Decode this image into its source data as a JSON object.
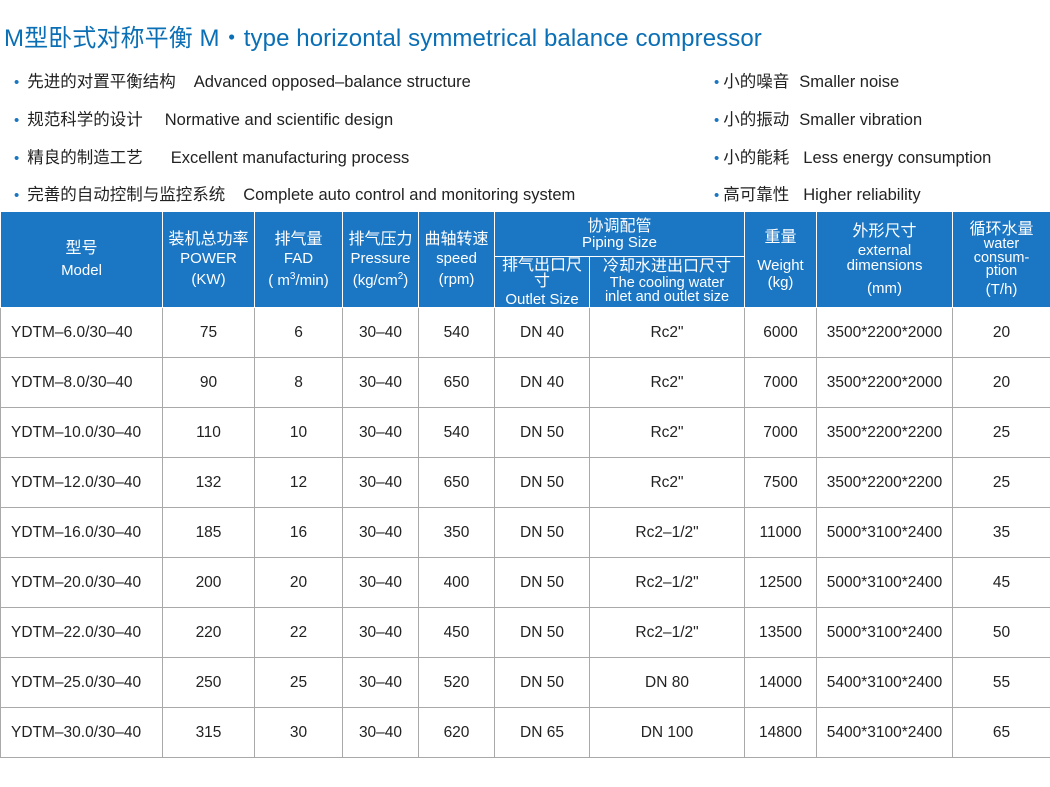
{
  "title": "M型卧式对称平衡  M・type horizontal symmetrical balance compressor",
  "features_left": [
    {
      "cn": "先进的对置平衡结构",
      "en": "Advanced opposed–balance structure"
    },
    {
      "cn": "规范科学的设计",
      "en": "Normative and scientific design"
    },
    {
      "cn": "精良的制造工艺",
      "en": "Excellent manufacturing process"
    },
    {
      "cn": "完善的自动控制与监控系统",
      "en": "Complete auto control and monitoring system"
    }
  ],
  "features_right": [
    {
      "cn": "小的噪音",
      "en": "Smaller noise"
    },
    {
      "cn": "小的振动",
      "en": "Smaller vibration"
    },
    {
      "cn": "小的能耗",
      "en": "Less energy consumption"
    },
    {
      "cn": "高可靠性",
      "en": "Higher reliability"
    }
  ],
  "bullet": "•",
  "header": {
    "model_cn": "型号",
    "model_en": "Model",
    "power_cn": "装机总功率",
    "power_en": "POWER",
    "power_unit": "(KW)",
    "fad_cn": "排气量",
    "fad_en": "FAD",
    "fad_unit_a": "( m",
    "fad_unit_sup": "3",
    "fad_unit_b": "/min)",
    "pressure_cn": "排气压力",
    "pressure_en": "Pressure",
    "pressure_unit_a": "(kg/cm",
    "pressure_unit_sup": "2",
    "pressure_unit_b": ")",
    "speed_cn": "曲轴转速",
    "speed_en": "speed",
    "speed_unit": "(rpm)",
    "piping_cn": "协调配管",
    "piping_en": "Piping Size",
    "outlet_cn": "排气出口尺寸",
    "outlet_en": "Outlet Size",
    "cooling_cn": "冷却水进出口尺寸",
    "cooling_en1": "The cooling water",
    "cooling_en2": "inlet and outlet size",
    "weight_cn": "重量",
    "weight_en": "Weight",
    "weight_unit": "(kg)",
    "dim_cn": "外形尺寸",
    "dim_en1": "external",
    "dim_en2": "dimensions",
    "dim_unit": "(mm)",
    "water_cn": "循环水量",
    "water_en1": "water",
    "water_en2": "consum-",
    "water_en3": "ption",
    "water_unit": "(T/h)"
  },
  "rows": [
    {
      "model": "YDTM–6.0/30–40",
      "power": "75",
      "fad": "6",
      "pressure": "30–40",
      "speed": "540",
      "outlet": "DN 40",
      "cooling": "Rc2\"",
      "weight": "6000",
      "dims": "3500*2200*2000",
      "water": "20"
    },
    {
      "model": "YDTM–8.0/30–40",
      "power": "90",
      "fad": "8",
      "pressure": "30–40",
      "speed": "650",
      "outlet": "DN 40",
      "cooling": "Rc2\"",
      "weight": "7000",
      "dims": "3500*2200*2000",
      "water": "20"
    },
    {
      "model": "YDTM–10.0/30–40",
      "power": "110",
      "fad": "10",
      "pressure": "30–40",
      "speed": "540",
      "outlet": "DN 50",
      "cooling": "Rc2\"",
      "weight": "7000",
      "dims": "3500*2200*2200",
      "water": "25"
    },
    {
      "model": "YDTM–12.0/30–40",
      "power": "132",
      "fad": "12",
      "pressure": "30–40",
      "speed": "650",
      "outlet": "DN 50",
      "cooling": "Rc2\"",
      "weight": "7500",
      "dims": "3500*2200*2200",
      "water": "25"
    },
    {
      "model": "YDTM–16.0/30–40",
      "power": "185",
      "fad": "16",
      "pressure": "30–40",
      "speed": "350",
      "outlet": "DN 50",
      "cooling": "Rc2–1/2\"",
      "weight": "11000",
      "dims": "5000*3100*2400",
      "water": "35"
    },
    {
      "model": "YDTM–20.0/30–40",
      "power": "200",
      "fad": "20",
      "pressure": "30–40",
      "speed": "400",
      "outlet": "DN 50",
      "cooling": "Rc2–1/2\"",
      "weight": "12500",
      "dims": "5000*3100*2400",
      "water": "45"
    },
    {
      "model": "YDTM–22.0/30–40",
      "power": "220",
      "fad": "22",
      "pressure": "30–40",
      "speed": "450",
      "outlet": "DN 50",
      "cooling": "Rc2–1/2\"",
      "weight": "13500",
      "dims": "5000*3100*2400",
      "water": "50"
    },
    {
      "model": "YDTM–25.0/30–40",
      "power": "250",
      "fad": "25",
      "pressure": "30–40",
      "speed": "520",
      "outlet": "DN 50",
      "cooling": "DN 80",
      "weight": "14000",
      "dims": "5400*3100*2400",
      "water": "55"
    },
    {
      "model": "YDTM–30.0/30–40",
      "power": "315",
      "fad": "30",
      "pressure": "30–40",
      "speed": "620",
      "outlet": "DN 65",
      "cooling": "DN 100",
      "weight": "14800",
      "dims": "5400*3100*2400",
      "water": "65"
    }
  ]
}
